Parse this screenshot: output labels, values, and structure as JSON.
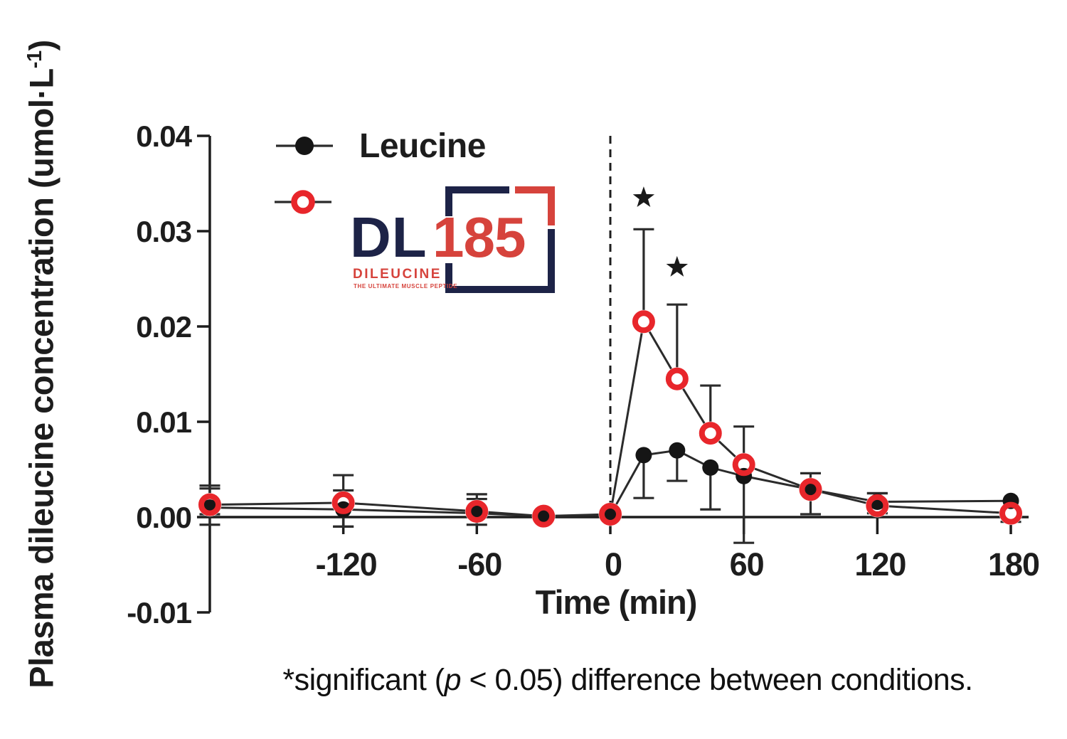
{
  "figure": {
    "ylabel_main": "Plasma dileucine concentration (umol·L",
    "ylabel_sup": "-1",
    "ylabel_end": ")",
    "footnote": {
      "pre": "*significant (",
      "p": "p",
      "post": " < 0.05) difference between conditions."
    }
  },
  "legend": {
    "leucine_label": "Leucine"
  },
  "logo": {
    "dl": "DL",
    "num": "185",
    "name": "DILEUCINE",
    "tagline": "THE ULTIMATE MUSCLE PEPTIDE"
  },
  "colors": {
    "ink": "#1d1d1d",
    "line_gray": "#2b2b2b",
    "marker_black": "#151515",
    "marker_red": "#e8262b",
    "logo_navy": "#1d2347",
    "logo_red": "#d6433c"
  },
  "chart_data": {
    "type": "line",
    "title": "",
    "xlabel": "Time (min)",
    "ylabel": "Plasma dileucine concentration (umol·L⁻¹)",
    "x": [
      -180,
      -120,
      -60,
      -30,
      0,
      15,
      30,
      45,
      60,
      90,
      120,
      180
    ],
    "series": [
      {
        "name": "Leucine",
        "marker": "filled-circle",
        "color": "#151515",
        "values": [
          0.001,
          0.0008,
          0.0004,
          0.0001,
          0.0002,
          0.0065,
          0.007,
          0.0052,
          0.0043,
          0.0029,
          0.0016,
          0.0017
        ],
        "err_up": [
          0.002,
          0.002,
          0.0015,
          0,
          0,
          0,
          0,
          0,
          0,
          0.0017,
          0.0009,
          0
        ],
        "err_dn": [
          0.0018,
          0.0018,
          0.0012,
          0,
          0,
          0.0045,
          0.0032,
          0.0044,
          0.007,
          0.0026,
          0.0012,
          0
        ]
      },
      {
        "name": "DL185 Dileucine",
        "marker": "open-circle",
        "color": "#e8262b",
        "values": [
          0.0013,
          0.0015,
          0.0006,
          0.0001,
          0.0003,
          0.0205,
          0.0145,
          0.0088,
          0.0055,
          0.0029,
          0.0012,
          0.0004
        ],
        "err_up": [
          0.002,
          0.0029,
          0.0018,
          0,
          0,
          0.0097,
          0.0078,
          0.005,
          0.004,
          0,
          0.0013,
          0
        ],
        "err_dn": [
          0.001,
          0.0025,
          0,
          0,
          0,
          0,
          0,
          0,
          0,
          0,
          0,
          0.0009
        ]
      }
    ],
    "yticks": [
      0.04,
      0.03,
      0.02,
      0.01,
      0.0,
      -0.01
    ],
    "ytick_labels": [
      "0.04",
      "0.03",
      "0.02",
      "0.01",
      "0.00",
      "-0.01"
    ],
    "xticks": [
      -120,
      -60,
      0,
      60,
      120,
      180
    ],
    "xtick_labels": [
      "-120",
      "-60",
      "0",
      "60",
      "120",
      "180"
    ],
    "ylim": [
      -0.01,
      0.04
    ],
    "xlim": [
      -180,
      188
    ],
    "grid": false,
    "legend_position": "upper-left-inside",
    "event_line_x": 0,
    "event_line_style": "dashed",
    "significance": [
      {
        "x": 15,
        "y": 0.0335,
        "symbol": "*"
      },
      {
        "x": 30,
        "y": 0.0262,
        "symbol": "*"
      }
    ]
  }
}
